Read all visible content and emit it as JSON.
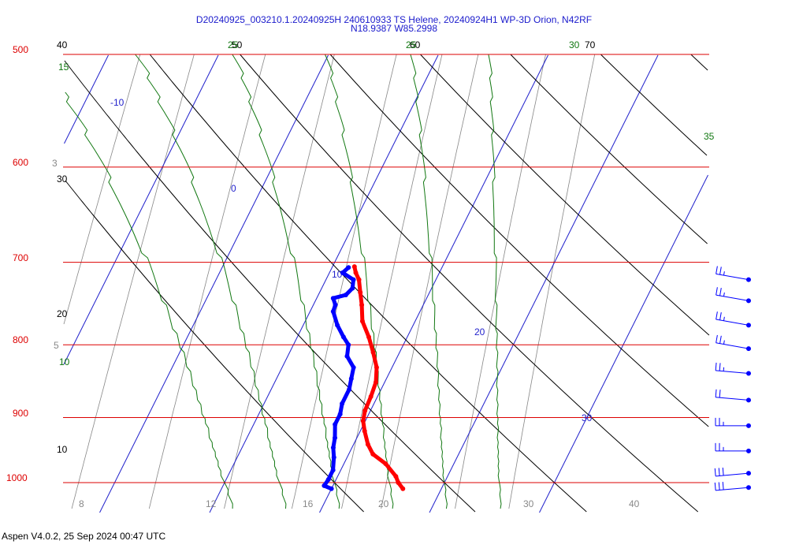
{
  "header": {
    "title_line1": "D20240925_003210.1.20240925H 240610933 TS Helene, 20240924H1 WP-3D Orion, N42RF",
    "title_line2": "N18.9387 W85.2998"
  },
  "footer": "Aspen V4.0.2, 25 Sep 2024  00:47 UTC",
  "chart_data": {
    "type": "skew-t",
    "colors": {
      "isobars": "#dd0000",
      "isotherms": "#2222cc",
      "dry_adiabats": "#000000",
      "moist_adiabats": "#117711",
      "mixing_ratio": "#888888",
      "temperature": "#ff0000",
      "dewpoint": "#0000ff"
    },
    "pressure_levels": [
      "500",
      "600",
      "700",
      "800",
      "900",
      "1000"
    ],
    "isotherm_labels": [
      "-10",
      "0",
      "10",
      "20",
      "30"
    ],
    "bottom_labels": [
      "8",
      "12",
      "16",
      "20",
      "30",
      "40"
    ],
    "dry_adiabat_labels": [
      "40",
      "50",
      "60",
      "70",
      "30",
      "20",
      "10"
    ],
    "moist_adiabat_labels": [
      "15",
      "25",
      "25",
      "30",
      "35",
      "10"
    ],
    "mixing_ratio_labels": [
      "3",
      "5"
    ],
    "temperature_profile": [
      [
        1010,
        26.5
      ],
      [
        1000,
        25.8
      ],
      [
        990,
        25.3
      ],
      [
        970,
        23.8
      ],
      [
        955,
        22.2
      ],
      [
        940,
        21.3
      ],
      [
        920,
        20.4
      ],
      [
        905,
        19.8
      ],
      [
        890,
        19.5
      ],
      [
        870,
        19.4
      ],
      [
        850,
        19.2
      ],
      [
        830,
        18.6
      ],
      [
        810,
        17.6
      ],
      [
        790,
        16.5
      ],
      [
        770,
        15.2
      ],
      [
        750,
        14.4
      ],
      [
        735,
        13.7
      ],
      [
        720,
        13.0
      ],
      [
        712,
        12.4
      ],
      [
        705,
        12.0
      ]
    ],
    "dewpoint_profile": [
      [
        1010,
        20.0
      ],
      [
        1005,
        19.2
      ],
      [
        995,
        19.3
      ],
      [
        980,
        19.3
      ],
      [
        960,
        18.8
      ],
      [
        945,
        18.3
      ],
      [
        930,
        18.0
      ],
      [
        910,
        17.4
      ],
      [
        895,
        17.4
      ],
      [
        880,
        17.1
      ],
      [
        860,
        17.1
      ],
      [
        845,
        16.8
      ],
      [
        830,
        16.5
      ],
      [
        815,
        15.4
      ],
      [
        800,
        15.0
      ],
      [
        790,
        14.2
      ],
      [
        775,
        13.1
      ],
      [
        758,
        12.1
      ],
      [
        750,
        12.0
      ],
      [
        742,
        11.5
      ],
      [
        738,
        12.5
      ],
      [
        730,
        12.8
      ],
      [
        720,
        12.5
      ],
      [
        712,
        11.2
      ],
      [
        706,
        11.5
      ]
    ],
    "wind_barbs": [
      {
        "pressure": 720,
        "speed_kt": 25,
        "from_deg": 80
      },
      {
        "pressure": 745,
        "speed_kt": 25,
        "from_deg": 80
      },
      {
        "pressure": 775,
        "speed_kt": 25,
        "from_deg": 80
      },
      {
        "pressure": 805,
        "speed_kt": 25,
        "from_deg": 80
      },
      {
        "pressure": 838,
        "speed_kt": 25,
        "from_deg": 85
      },
      {
        "pressure": 875,
        "speed_kt": 20,
        "from_deg": 85
      },
      {
        "pressure": 912,
        "speed_kt": 25,
        "from_deg": 90
      },
      {
        "pressure": 950,
        "speed_kt": 25,
        "from_deg": 90
      },
      {
        "pressure": 985,
        "speed_kt": 30,
        "from_deg": 95
      },
      {
        "pressure": 1008,
        "speed_kt": 30,
        "from_deg": 95
      }
    ]
  }
}
